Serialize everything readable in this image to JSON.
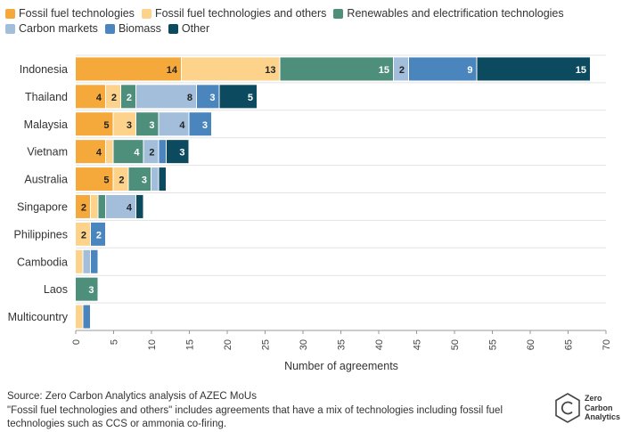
{
  "legend": [
    {
      "label": "Fossil fuel technologies",
      "color": "#f5a93a"
    },
    {
      "label": "Fossil fuel technologies and others",
      "color": "#fdd38c"
    },
    {
      "label": "Renewables and electrification technologies",
      "color": "#4e8f7c"
    },
    {
      "label": "Carbon markets",
      "color": "#a3bedb"
    },
    {
      "label": "Biomass",
      "color": "#4a86bd"
    },
    {
      "label": "Other",
      "color": "#0c4a5f"
    }
  ],
  "chart_data": {
    "type": "bar",
    "orientation": "horizontal",
    "stacked": true,
    "categories": [
      "Indonesia",
      "Thailand",
      "Malaysia",
      "Vietnam",
      "Australia",
      "Singapore",
      "Philippines",
      "Cambodia",
      "Laos",
      "Multicountry"
    ],
    "series": [
      {
        "name": "Fossil fuel technologies",
        "values": [
          14,
          4,
          5,
          4,
          5,
          2,
          0,
          0,
          0,
          0
        ],
        "labels": [
          "14",
          "4",
          "5",
          "4",
          "5",
          "2",
          "",
          "",
          "",
          ""
        ]
      },
      {
        "name": "Fossil fuel technologies and others",
        "values": [
          13,
          2,
          3,
          1,
          2,
          1,
          2,
          1,
          0,
          1
        ],
        "labels": [
          "13",
          "2",
          "3",
          "",
          "2",
          "",
          "2",
          "",
          "",
          ""
        ]
      },
      {
        "name": "Renewables and electrification technologies",
        "values": [
          15,
          2,
          3,
          4,
          3,
          1,
          0,
          0,
          3,
          0
        ],
        "labels": [
          "15",
          "2",
          "3",
          "4",
          "3",
          "",
          "",
          "",
          "3",
          ""
        ]
      },
      {
        "name": "Carbon markets",
        "values": [
          2,
          8,
          4,
          2,
          1,
          4,
          0,
          1,
          0,
          0
        ],
        "labels": [
          "2",
          "8",
          "4",
          "2",
          "",
          "4",
          "",
          "",
          "",
          ""
        ]
      },
      {
        "name": "Biomass",
        "values": [
          9,
          3,
          3,
          1,
          0,
          0,
          2,
          1,
          0,
          1
        ],
        "labels": [
          "9",
          "3",
          "3",
          "",
          "",
          "",
          "2",
          "",
          "",
          ""
        ]
      },
      {
        "name": "Other",
        "values": [
          15,
          5,
          0,
          3,
          1,
          1,
          0,
          0,
          0,
          0
        ],
        "labels": [
          "15",
          "5",
          "",
          "3",
          "",
          "",
          "",
          "",
          "",
          ""
        ]
      }
    ],
    "xlabel": "Number of agreements",
    "xlim": [
      0,
      70
    ],
    "xticks": [
      0,
      5,
      10,
      15,
      20,
      25,
      30,
      35,
      40,
      45,
      50,
      55,
      60,
      65,
      70
    ],
    "grid": "horizontal",
    "legend_position": "top"
  },
  "footer": {
    "source": "Source: Zero Carbon Analytics analysis of AZEC MoUs",
    "note": "\"Fossil fuel technologies and others\" includes agreements that have a mix of technologies including fossil fuel technologies such as CCS or ammonia co-firing."
  },
  "logo": {
    "line1": "Zero",
    "line2": "Carbon",
    "line3": "Analytics"
  }
}
